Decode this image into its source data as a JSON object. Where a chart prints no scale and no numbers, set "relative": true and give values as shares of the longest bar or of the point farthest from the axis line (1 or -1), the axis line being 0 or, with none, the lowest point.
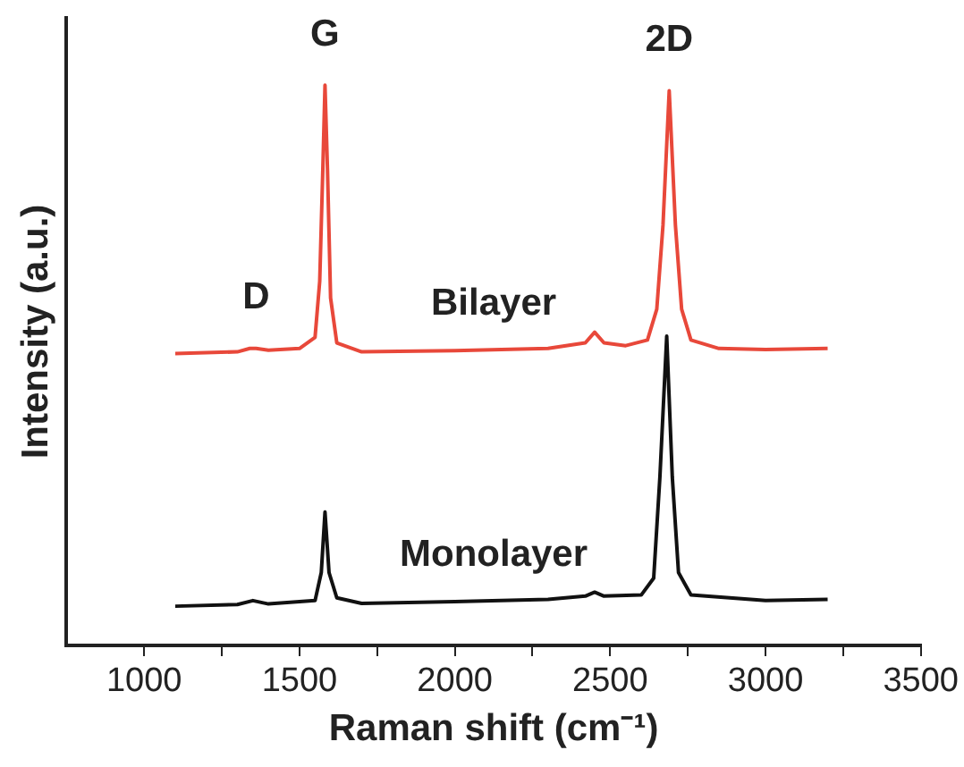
{
  "chart_data": {
    "type": "line",
    "relative": true,
    "xlabel": "Raman shift (cm⁻¹)",
    "ylabel": "Intensity (a.u.)",
    "xlim": [
      750,
      3500
    ],
    "xticks": [
      1000,
      {
        "value": 1250,
        "label": null
      },
      1500,
      {
        "value": 1750,
        "label": null
      },
      2000,
      {
        "value": 2250,
        "label": null
      },
      2500,
      {
        "value": 2750,
        "label": null
      },
      3000,
      {
        "value": 3250,
        "label": null
      },
      3500
    ],
    "tick_labels": "x",
    "grid": false,
    "legend": false,
    "marker": "none",
    "line_style": "solid",
    "series": [
      {
        "name": "Bilayer",
        "color": "#e8483a",
        "x": [
          1100,
          1300,
          1340,
          1360,
          1400,
          1500,
          1550,
          1565,
          1575,
          1582,
          1590,
          1600,
          1620,
          1700,
          2000,
          2300,
          2420,
          2450,
          2480,
          2550,
          2620,
          2650,
          2670,
          2690,
          2710,
          2730,
          2760,
          2850,
          3000,
          3200
        ],
        "values": [
          0.521,
          0.524,
          0.53,
          0.53,
          0.527,
          0.53,
          0.55,
          0.65,
          0.85,
          1.0,
          0.85,
          0.62,
          0.54,
          0.524,
          0.526,
          0.53,
          0.54,
          0.559,
          0.54,
          0.535,
          0.545,
          0.6,
          0.75,
          0.99,
          0.75,
          0.6,
          0.545,
          0.53,
          0.528,
          0.53
        ]
      },
      {
        "name": "Monolayer",
        "color": "#111111",
        "x": [
          1100,
          1300,
          1350,
          1400,
          1550,
          1570,
          1582,
          1595,
          1620,
          1700,
          2000,
          2300,
          2420,
          2450,
          2480,
          2600,
          2640,
          2660,
          2682,
          2700,
          2720,
          2760,
          3000,
          3200
        ],
        "values": [
          0.07,
          0.073,
          0.08,
          0.074,
          0.08,
          0.13,
          0.238,
          0.13,
          0.085,
          0.075,
          0.078,
          0.082,
          0.088,
          0.095,
          0.088,
          0.09,
          0.12,
          0.3,
          0.552,
          0.3,
          0.13,
          0.09,
          0.08,
          0.082
        ]
      }
    ],
    "annotations": [
      {
        "text": "D",
        "x": 1360,
        "y": 0.53
      },
      {
        "text": "G",
        "x": 1582,
        "y": 1.0
      },
      {
        "text": "2D",
        "x": 2690,
        "y": 0.99
      }
    ]
  }
}
